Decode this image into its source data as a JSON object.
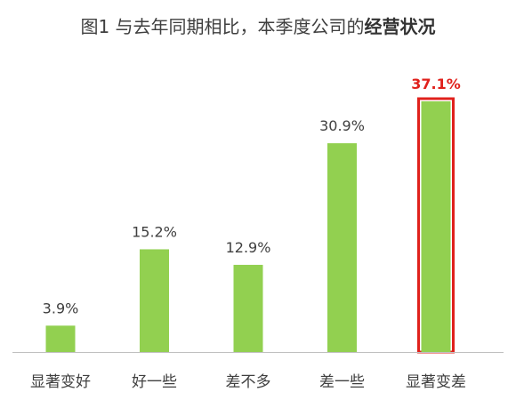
{
  "chart_data": {
    "type": "bar",
    "title_prefix": "图1 与去年同期相比，本季度公司的",
    "title_emphasis": "经营状况",
    "categories": [
      "显著变好",
      "好一些",
      "差不多",
      "差一些",
      "显著变差"
    ],
    "values": [
      3.9,
      15.2,
      12.9,
      30.9,
      37.1
    ],
    "value_labels": [
      "3.9%",
      "15.2%",
      "12.9%",
      "30.9%",
      "37.1%"
    ],
    "unit": "%",
    "ylim": [
      0,
      37.1
    ],
    "grid": false,
    "highlight_index": 4
  },
  "colors": {
    "bar": "#92d050",
    "highlight_border": "#e0211c",
    "highlight_label": "#e0211c",
    "label": "#404040",
    "axis": "#bfbfbf"
  }
}
